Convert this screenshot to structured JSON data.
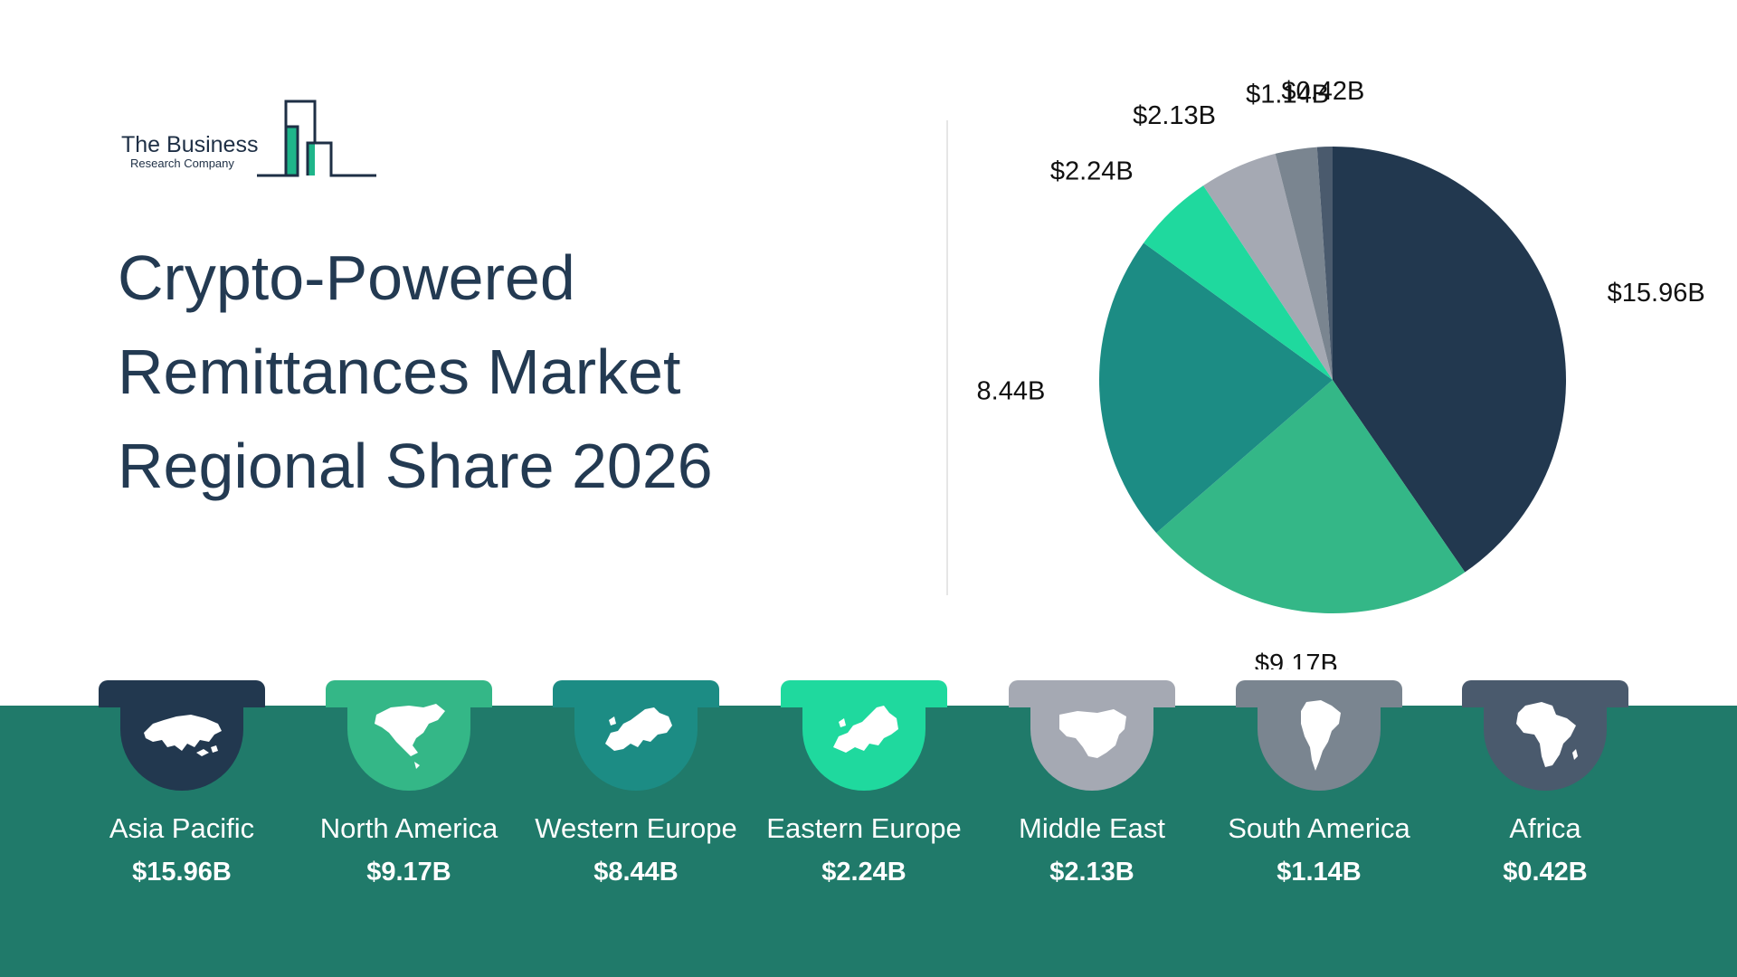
{
  "logo": {
    "line1": "The Business",
    "line2": "Research Company"
  },
  "title_lines": [
    "Crypto-Powered",
    "Remittances Market",
    "Regional Share 2026"
  ],
  "colors": {
    "navy": "#22384f",
    "green": "#34b787",
    "teal": "#1c8c84",
    "mint": "#1fd99e",
    "grey_light": "#a5a9b3",
    "grey_mid": "#7a8590",
    "slate": "#4a5a6d",
    "band": "#207a6a"
  },
  "chart_data": {
    "type": "pie",
    "title": "Crypto-Powered Remittances Market Regional Share 2026",
    "unit": "$B",
    "slices": [
      {
        "name": "Asia Pacific",
        "value": 15.96,
        "label": "$15.96B",
        "color": "#22384f"
      },
      {
        "name": "North America",
        "value": 9.17,
        "label": "$9.17B",
        "color": "#34b787"
      },
      {
        "name": "Western Europe",
        "value": 8.44,
        "label": "$8.44B",
        "color": "#1c8c84"
      },
      {
        "name": "Eastern Europe",
        "value": 2.24,
        "label": "$2.24B",
        "color": "#1fd99e"
      },
      {
        "name": "Middle East",
        "value": 2.13,
        "label": "$2.13B",
        "color": "#a5a9b3"
      },
      {
        "name": "South America",
        "value": 1.14,
        "label": "$1.14B",
        "color": "#7a8590"
      },
      {
        "name": "Africa",
        "value": 0.42,
        "label": "$0.42B",
        "color": "#4a5a6d"
      }
    ]
  },
  "regions": [
    {
      "name": "Asia Pacific",
      "value": "$15.96B",
      "icon": "asia-map-icon",
      "color": "#22384f"
    },
    {
      "name": "North America",
      "value": "$9.17B",
      "icon": "north-america-map-icon",
      "color": "#34b787"
    },
    {
      "name": "Western Europe",
      "value": "$8.44B",
      "icon": "western-europe-map-icon",
      "color": "#1c8c84"
    },
    {
      "name": "Eastern Europe",
      "value": "$2.24B",
      "icon": "eastern-europe-map-icon",
      "color": "#1fd99e"
    },
    {
      "name": "Middle East",
      "value": "$2.13B",
      "icon": "middle-east-map-icon",
      "color": "#a5a9b3"
    },
    {
      "name": "South America",
      "value": "$1.14B",
      "icon": "south-america-map-icon",
      "color": "#7a8590"
    },
    {
      "name": "Africa",
      "value": "$0.42B",
      "icon": "africa-map-icon",
      "color": "#4a5a6d"
    }
  ]
}
